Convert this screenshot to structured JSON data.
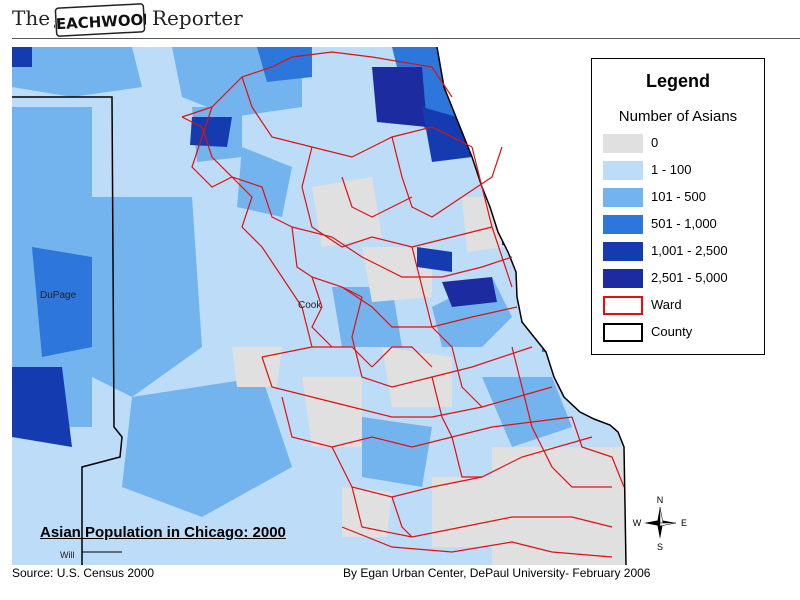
{
  "header": {
    "brand_the": "The",
    "brand_logo_text": "BEACHWOOD",
    "brand_reporter": "Reporter"
  },
  "map": {
    "title": "Asian Population in Chicago: 2000",
    "county_labels": {
      "dupage": "DuPage",
      "cook": "Cook",
      "will": "Will"
    },
    "colors": {
      "zero": "#e0e0e0",
      "c1_100": "#bcdcf8",
      "c101_500": "#74b4ee",
      "c501_1000": "#2c76dc",
      "c1001_2500": "#143cb0",
      "c2501_5000": "#1c2ca0",
      "ward_line": "#e01010",
      "county_line": "#000000"
    }
  },
  "legend": {
    "title": "Legend",
    "subtitle": "Number of Asians",
    "items": [
      {
        "label": "0",
        "color": "#e0e0e0"
      },
      {
        "label": "1 - 100",
        "color": "#bcdcf8"
      },
      {
        "label": "101 - 500",
        "color": "#74b4ee"
      },
      {
        "label": "501 - 1,000",
        "color": "#2c76dc"
      },
      {
        "label": "1,001 - 2,500",
        "color": "#143cb0"
      },
      {
        "label": "2,501 - 5,000",
        "color": "#1c2ca0"
      },
      {
        "label": "Ward",
        "color": "#ffffff",
        "border": "#e01010"
      },
      {
        "label": "County",
        "color": "#ffffff",
        "border": "#000000"
      }
    ]
  },
  "compass": {
    "n": "N",
    "e": "E",
    "s": "S",
    "w": "W"
  },
  "footer": {
    "source": "Source: U.S. Census 2000",
    "credit": "By Egan Urban Center, DePaul University- February 2006"
  }
}
